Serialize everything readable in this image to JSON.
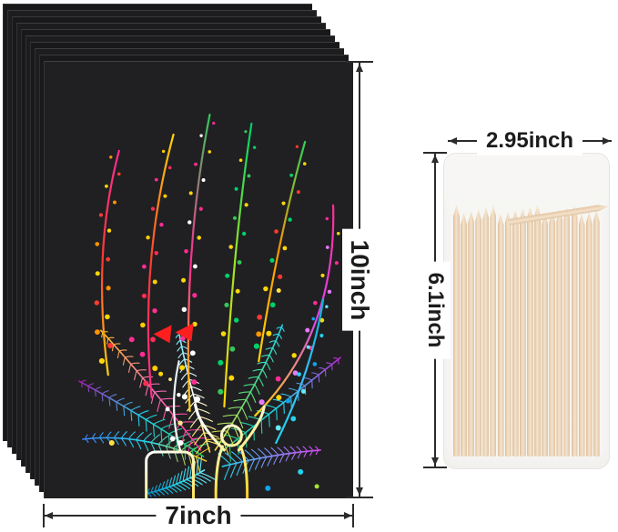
{
  "page": {
    "background": "#ffffff"
  },
  "scratch_paper": {
    "name": "rainbow scratch paper stack",
    "sheet_count": 10,
    "sheet_color": "#202022",
    "art_description": "rainbow flower bouquet scratch art with figure and vase"
  },
  "stylus_box": {
    "name": "wooden stylus sticks in frosted case",
    "stick_count": 20,
    "case_color": "#f6f5f3",
    "stick_color": "#eed3b4"
  },
  "dimensions": {
    "line_color": "#2b2b2b",
    "paper_width_label": "7inch",
    "paper_height_label": "10inch",
    "box_width_label": "2.95inch",
    "box_height_label": "6.1inch"
  }
}
